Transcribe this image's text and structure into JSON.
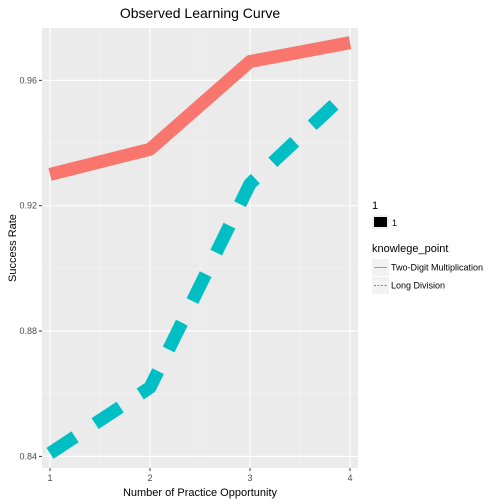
{
  "chart_data": {
    "type": "line",
    "title": "Observed Learning Curve",
    "xlabel": "Number of Practice Opportunity",
    "ylabel": "Success Rate",
    "x": [
      1,
      2,
      3,
      4
    ],
    "xlim": [
      0.92,
      4.08
    ],
    "ylim": [
      0.8363,
      0.9767
    ],
    "x_ticks": [
      1,
      2,
      3,
      4
    ],
    "y_ticks": [
      0.84,
      0.88,
      0.92,
      0.96
    ],
    "y_tick_labels": [
      "0.84",
      "0.88",
      "0.92",
      "0.96"
    ],
    "grid": true,
    "legend_placement": "right",
    "size_legend": {
      "title": "1",
      "label": "1"
    },
    "color_legend_title": "knowlege_point",
    "series": [
      {
        "name": "Two-Digit Multiplication",
        "values": [
          0.93,
          0.938,
          0.966,
          0.972
        ],
        "color": "#F8766D",
        "dash": "solid"
      },
      {
        "name": "Long Division",
        "values": [
          0.841,
          0.862,
          0.927,
          0.957
        ],
        "color": "#00BFC4",
        "dash": "dashed"
      }
    ]
  }
}
